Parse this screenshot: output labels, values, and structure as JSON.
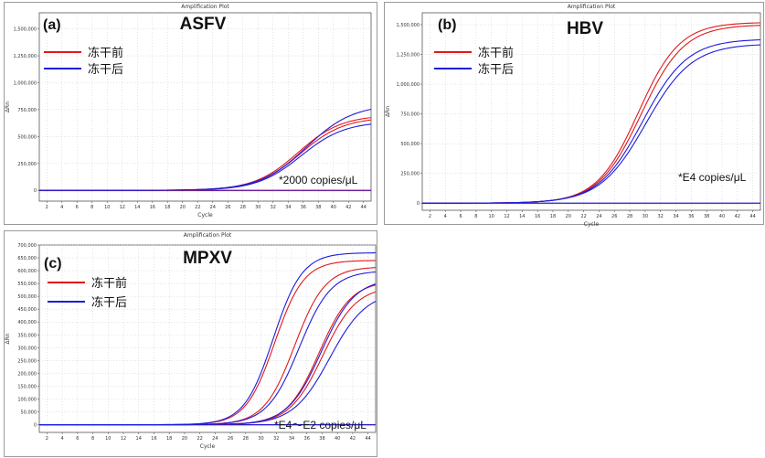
{
  "chart_data": [
    {
      "type": "line",
      "panel_label": "(a)",
      "plot_title": "Amplification Plot",
      "panel_name": "ASFV",
      "xlabel": "Cycle",
      "ylabel": "ΔRn",
      "xlim": [
        1,
        45
      ],
      "ylim": [
        -100000,
        1650000
      ],
      "xticks": [
        2,
        4,
        6,
        8,
        10,
        12,
        14,
        16,
        18,
        20,
        22,
        24,
        26,
        28,
        30,
        32,
        34,
        36,
        38,
        40,
        42,
        44
      ],
      "yticks": [
        0,
        250000,
        500000,
        750000,
        1000000,
        1250000,
        1500000
      ],
      "ytick_labels": [
        "0",
        "250,000",
        "500,000",
        "750,000",
        "1,000,000",
        "1,250,000",
        "1,500,000"
      ],
      "legend": [
        {
          "label": "冻干前",
          "color": "#e0191b"
        },
        {
          "label": "冻干后",
          "color": "#1c1cdc"
        }
      ],
      "annotation": "*2000 copies/μL",
      "curve_model": "plateau / (1 + exp((midpoint - cycle) / slope))",
      "series": [
        {
          "group": "冻干前",
          "color": "#e0191b",
          "plateau": 700000,
          "midpoint": 35.3,
          "slope": 2.9
        },
        {
          "group": "冻干前",
          "color": "#e0191b",
          "plateau": 680000,
          "midpoint": 35.6,
          "slope": 2.9
        },
        {
          "group": "冻干后",
          "color": "#1c1cdc",
          "plateau": 800000,
          "midpoint": 36.4,
          "slope": 3.1
        },
        {
          "group": "冻干后",
          "color": "#1c1cdc",
          "plateau": 640000,
          "midpoint": 35.7,
          "slope": 2.9
        }
      ]
    },
    {
      "type": "line",
      "panel_label": "(b)",
      "plot_title": "Amplification Plot",
      "panel_name": "HBV",
      "xlabel": "Cycle",
      "ylabel": "ΔRn",
      "xlim": [
        1,
        45
      ],
      "ylim": [
        -60000,
        1600000
      ],
      "xticks": [
        2,
        4,
        6,
        8,
        10,
        12,
        14,
        16,
        18,
        20,
        22,
        24,
        26,
        28,
        30,
        32,
        34,
        36,
        38,
        40,
        42,
        44
      ],
      "yticks": [
        0,
        250000,
        500000,
        750000,
        1000000,
        1250000,
        1500000
      ],
      "ytick_labels": [
        "0",
        "250,000",
        "500,000",
        "750,000",
        "1,000,000",
        "1,250,000",
        "1,500,000"
      ],
      "legend": [
        {
          "label": "冻干前",
          "color": "#e0191b"
        },
        {
          "label": "冻干后",
          "color": "#1c1cdc"
        }
      ],
      "annotation": "*E4 copies/μL",
      "curve_model": "plateau / (1 + exp((midpoint - cycle) / slope))",
      "series": [
        {
          "group": "冻干前",
          "color": "#e0191b",
          "plateau": 1520000,
          "midpoint": 29.1,
          "slope": 2.7
        },
        {
          "group": "冻干前",
          "color": "#e0191b",
          "plateau": 1500000,
          "midpoint": 29.5,
          "slope": 2.8
        },
        {
          "group": "冻干后",
          "color": "#1c1cdc",
          "plateau": 1380000,
          "midpoint": 29.7,
          "slope": 2.9
        },
        {
          "group": "冻干后",
          "color": "#1c1cdc",
          "plateau": 1340000,
          "midpoint": 30.1,
          "slope": 3.0
        }
      ]
    },
    {
      "type": "line",
      "panel_label": "(c)",
      "plot_title": "Amplification Plot",
      "panel_name": "MPXV",
      "xlabel": "Cycle",
      "ylabel": "ΔRn",
      "xlim": [
        1,
        45
      ],
      "ylim": [
        -30000,
        700000
      ],
      "xticks": [
        2,
        4,
        6,
        8,
        10,
        12,
        14,
        16,
        18,
        20,
        22,
        24,
        26,
        28,
        30,
        32,
        34,
        36,
        38,
        40,
        42,
        44
      ],
      "yticks": [
        0,
        50000,
        100000,
        150000,
        200000,
        250000,
        300000,
        350000,
        400000,
        450000,
        500000,
        550000,
        600000,
        650000,
        700000
      ],
      "ytick_labels": [
        "0",
        "50,000",
        "100,000",
        "150,000",
        "200,000",
        "250,000",
        "300,000",
        "350,000",
        "400,000",
        "450,000",
        "500,000",
        "550,000",
        "600,000",
        "650,000",
        "700,000"
      ],
      "legend": [
        {
          "label": "冻干前",
          "color": "#e0191b"
        },
        {
          "label": "冻干后",
          "color": "#1c1cdc"
        }
      ],
      "annotation": "*E4～E2 copies/μL",
      "curve_model": "plateau / (1 + exp((midpoint - cycle) / slope))",
      "series": [
        {
          "group": "冻干前",
          "color": "#e0191b",
          "plateau": 640000,
          "midpoint": 31.8,
          "slope": 1.9
        },
        {
          "group": "冻干后",
          "color": "#1c1cdc",
          "plateau": 670000,
          "midpoint": 31.6,
          "slope": 1.9
        },
        {
          "group": "冻干前",
          "color": "#e0191b",
          "plateau": 615000,
          "midpoint": 34.4,
          "slope": 2.0
        },
        {
          "group": "冻干后",
          "color": "#1c1cdc",
          "plateau": 600000,
          "midpoint": 35.0,
          "slope": 2.1
        },
        {
          "group": "冻干前",
          "color": "#e0191b",
          "plateau": 560000,
          "midpoint": 37.6,
          "slope": 2.1
        },
        {
          "group": "冻干后",
          "color": "#1c1cdc",
          "plateau": 570000,
          "midpoint": 37.9,
          "slope": 2.2
        },
        {
          "group": "冻干前",
          "color": "#e0191b",
          "plateau": 540000,
          "midpoint": 38.1,
          "slope": 2.2
        },
        {
          "group": "冻干后",
          "color": "#1c1cdc",
          "plateau": 520000,
          "midpoint": 39.0,
          "slope": 2.4
        }
      ]
    }
  ]
}
